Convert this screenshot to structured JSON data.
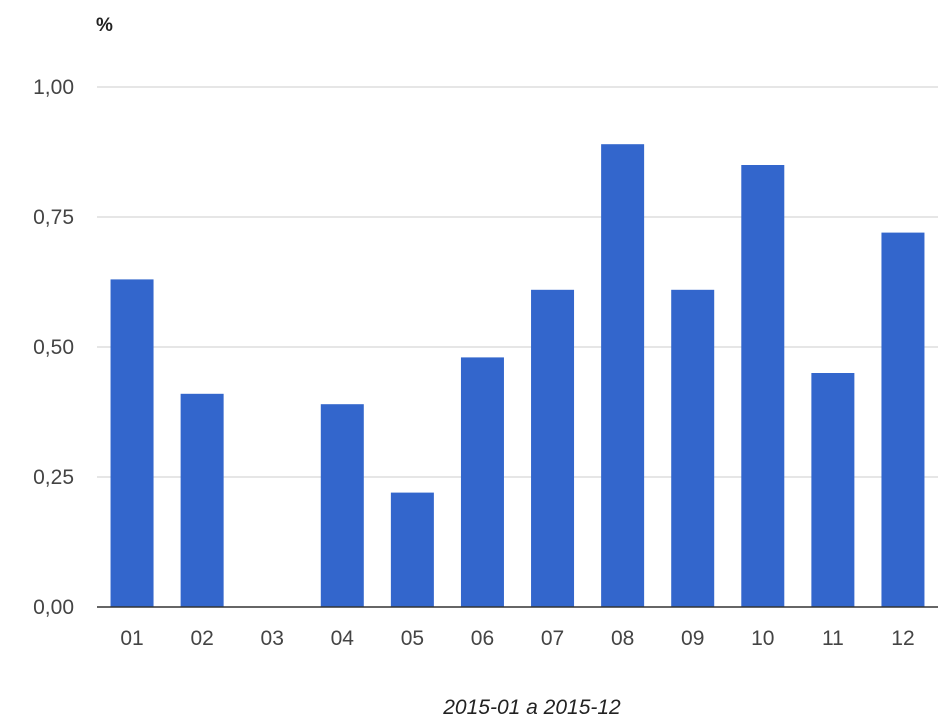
{
  "chart_data": {
    "type": "bar",
    "y_unit": "%",
    "xlabel": "2015-01 a 2015-12",
    "ylabel": "",
    "ylim": [
      0,
      1
    ],
    "y_ticks": [
      "0,00",
      "0,25",
      "0,50",
      "0,75",
      "1,00"
    ],
    "y_tick_values": [
      0,
      0.25,
      0.5,
      0.75,
      1.0
    ],
    "grid": true,
    "legend": "none",
    "categories": [
      "01",
      "02",
      "03",
      "04",
      "05",
      "06",
      "07",
      "08",
      "09",
      "10",
      "11",
      "12"
    ],
    "values": [
      0.63,
      0.41,
      0.0,
      0.39,
      0.22,
      0.48,
      0.61,
      0.89,
      0.61,
      0.85,
      0.45,
      0.72
    ],
    "bar_color": "#3366cc"
  }
}
